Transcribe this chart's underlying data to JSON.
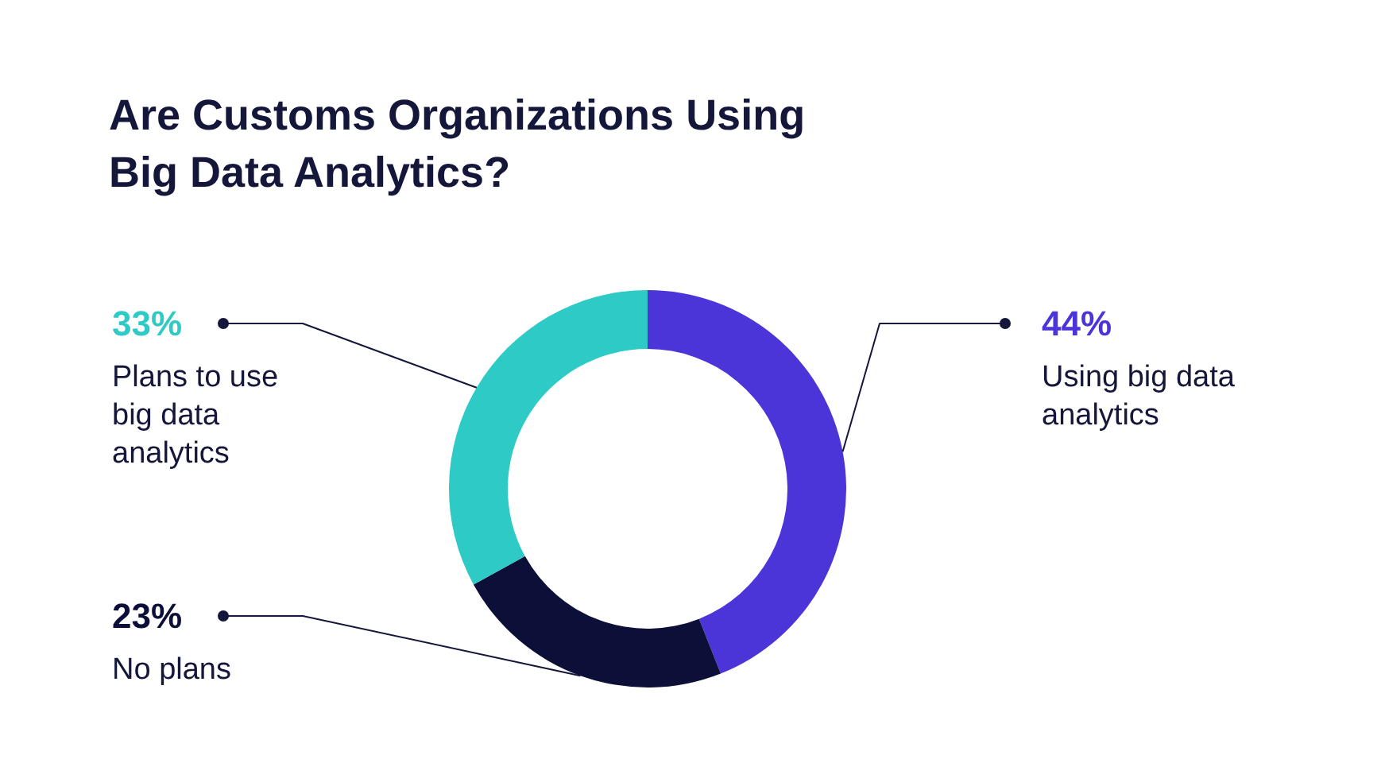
{
  "chart_data": {
    "type": "donut",
    "title": "Are Customs Organizations Using Big Data Analytics?",
    "categories": [
      "Using big data analytics",
      "No plans",
      "Plans to use big data analytics"
    ],
    "values": [
      44,
      23,
      33
    ],
    "colors": [
      "#4b35d8",
      "#0c0f38",
      "#2ecac5"
    ],
    "value_labels": [
      "44%",
      "23%",
      "33%"
    ]
  }
}
